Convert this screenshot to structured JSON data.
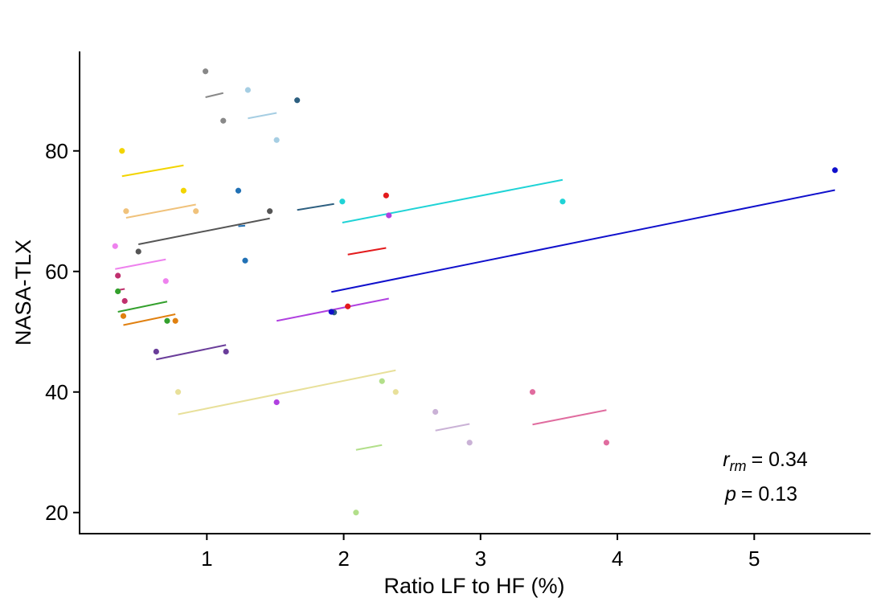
{
  "chart_data": {
    "type": "scatter",
    "xlabel": "Ratio LF to HF (%)",
    "ylabel": "NASA-TLX",
    "xlim": [
      0.07,
      5.85
    ],
    "ylim": [
      16.5,
      96.5
    ],
    "xticks": [
      1,
      2,
      3,
      4,
      5
    ],
    "yticks": [
      20,
      40,
      60,
      80
    ],
    "grid": false,
    "annotation": {
      "r_label": "r",
      "r_sub": "rm",
      "r_value": "= 0.34",
      "p_label": "p",
      "p_value": "= 0.13"
    },
    "subjects": [
      {
        "color": "#888888",
        "points": [
          [
            0.99,
            93.2
          ],
          [
            1.12,
            85.0
          ]
        ],
        "fit": [
          [
            0.99,
            88.9
          ],
          [
            1.12,
            89.6
          ]
        ]
      },
      {
        "color": "#a6cee3",
        "points": [
          [
            1.3,
            90.1
          ],
          [
            1.51,
            81.8
          ]
        ],
        "fit": [
          [
            1.3,
            85.4
          ],
          [
            1.51,
            86.3
          ]
        ]
      },
      {
        "color": "#2d5f80",
        "points": [
          [
            1.66,
            88.4
          ],
          [
            1.93,
            53.2
          ]
        ],
        "fit": [
          [
            1.66,
            70.2
          ],
          [
            1.93,
            71.2
          ]
        ]
      },
      {
        "color": "#f2d400",
        "points": [
          [
            0.38,
            80.0
          ],
          [
            0.83,
            73.4
          ]
        ],
        "fit": [
          [
            0.38,
            75.8
          ],
          [
            0.83,
            77.6
          ]
        ]
      },
      {
        "color": "#f0c27b",
        "points": [
          [
            0.41,
            70.0
          ],
          [
            0.92,
            70.0
          ]
        ],
        "fit": [
          [
            0.41,
            68.9
          ],
          [
            0.92,
            71.1
          ]
        ]
      },
      {
        "color": "#2171b5",
        "points": [
          [
            1.23,
            73.4
          ],
          [
            1.28,
            61.8
          ]
        ],
        "fit": [
          [
            1.23,
            67.5
          ],
          [
            1.28,
            67.6
          ]
        ]
      },
      {
        "color": "#e31a1c",
        "points": [
          [
            2.31,
            72.6
          ],
          [
            2.03,
            54.2
          ]
        ],
        "fit": [
          [
            2.03,
            62.8
          ],
          [
            2.31,
            63.9
          ]
        ]
      },
      {
        "color": "#1fd3d6",
        "points": [
          [
            1.99,
            71.6
          ],
          [
            3.6,
            71.6
          ]
        ],
        "fit": [
          [
            1.99,
            68.1
          ],
          [
            3.6,
            75.2
          ]
        ]
      },
      {
        "color": "#1010cc",
        "points": [
          [
            5.59,
            76.8
          ],
          [
            1.91,
            53.3
          ]
        ],
        "fit": [
          [
            1.91,
            56.6
          ],
          [
            5.59,
            73.5
          ]
        ]
      },
      {
        "color": "#555555",
        "points": [
          [
            0.5,
            63.3
          ],
          [
            1.46,
            70.0
          ]
        ],
        "fit": [
          [
            0.5,
            64.5
          ],
          [
            1.46,
            68.8
          ]
        ]
      },
      {
        "color": "#b040e0",
        "points": [
          [
            2.33,
            69.3
          ],
          [
            1.51,
            38.3
          ]
        ],
        "fit": [
          [
            1.51,
            51.8
          ],
          [
            2.33,
            55.5
          ]
        ]
      },
      {
        "color": "#ee82ee",
        "points": [
          [
            0.33,
            64.2
          ],
          [
            0.7,
            58.4
          ]
        ],
        "fit": [
          [
            0.33,
            60.4
          ],
          [
            0.7,
            62.0
          ]
        ]
      },
      {
        "color": "#c0306e",
        "points": [
          [
            0.35,
            59.3
          ],
          [
            0.4,
            55.1
          ]
        ],
        "fit": [
          [
            0.35,
            56.9
          ],
          [
            0.4,
            57.1
          ]
        ]
      },
      {
        "color": "#33a02c",
        "points": [
          [
            0.35,
            56.7
          ],
          [
            0.71,
            51.8
          ]
        ],
        "fit": [
          [
            0.35,
            53.3
          ],
          [
            0.71,
            55.0
          ]
        ]
      },
      {
        "color": "#e08010",
        "points": [
          [
            0.39,
            52.6
          ],
          [
            0.77,
            51.8
          ]
        ],
        "fit": [
          [
            0.39,
            51.1
          ],
          [
            0.77,
            52.9
          ]
        ]
      },
      {
        "color": "#6a3d9a",
        "points": [
          [
            0.63,
            46.7
          ],
          [
            1.14,
            46.7
          ]
        ],
        "fit": [
          [
            0.63,
            45.4
          ],
          [
            1.14,
            47.8
          ]
        ]
      },
      {
        "color": "#e8e09a",
        "points": [
          [
            0.79,
            40.0
          ],
          [
            2.38,
            40.0
          ]
        ],
        "fit": [
          [
            0.79,
            36.3
          ],
          [
            2.38,
            43.6
          ]
        ]
      },
      {
        "color": "#b2df8a",
        "points": [
          [
            2.28,
            41.8
          ],
          [
            2.09,
            20.0
          ]
        ],
        "fit": [
          [
            2.09,
            30.4
          ],
          [
            2.28,
            31.2
          ]
        ]
      },
      {
        "color": "#cab2d6",
        "points": [
          [
            2.67,
            36.7
          ],
          [
            2.92,
            31.6
          ]
        ],
        "fit": [
          [
            2.67,
            33.6
          ],
          [
            2.92,
            34.7
          ]
        ]
      },
      {
        "color": "#e06c9f",
        "points": [
          [
            3.38,
            40.0
          ],
          [
            3.92,
            31.6
          ]
        ],
        "fit": [
          [
            3.38,
            34.6
          ],
          [
            3.92,
            37.0
          ]
        ]
      }
    ]
  }
}
